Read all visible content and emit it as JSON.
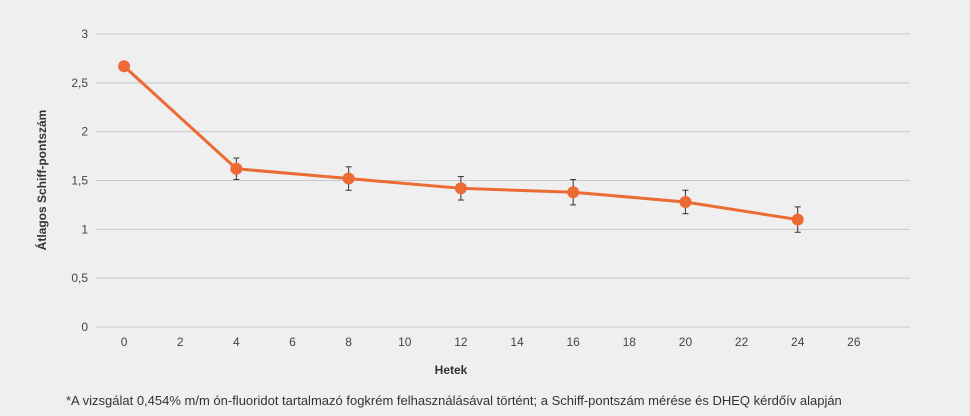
{
  "chart_data": {
    "type": "line",
    "xlabel": "Hetek",
    "ylabel": "Átlagos Schiff-pontszám",
    "xlim": [
      -1,
      28
    ],
    "ylim": [
      0,
      3
    ],
    "x_ticks": [
      0,
      2,
      4,
      6,
      8,
      10,
      12,
      14,
      16,
      18,
      20,
      22,
      24,
      26
    ],
    "y_ticks": [
      0,
      0.5,
      1,
      1.5,
      2,
      2.5,
      3
    ],
    "y_tick_labels": [
      "0",
      "0,5",
      "1",
      "1,5",
      "2",
      "2,5",
      "3"
    ],
    "grid": "horizontal",
    "series": [
      {
        "x": [
          0,
          4,
          8,
          12,
          16,
          20,
          24
        ],
        "y": [
          2.67,
          1.62,
          1.52,
          1.42,
          1.38,
          1.28,
          1.1
        ],
        "error": [
          0,
          0.11,
          0.12,
          0.12,
          0.13,
          0.12,
          0.13
        ]
      }
    ]
  },
  "colors": {
    "series": "#ec6a33",
    "grid": "#c8c8c8",
    "error_bar": "#333333",
    "background": "#efefef"
  },
  "footnote": "*A vizsgálat 0,454% m/m ón-fluoridot tartalmazó fogkrém felhasználásával történt; a Schiff-pontszám mérése és DHEQ kérdőív alapján"
}
